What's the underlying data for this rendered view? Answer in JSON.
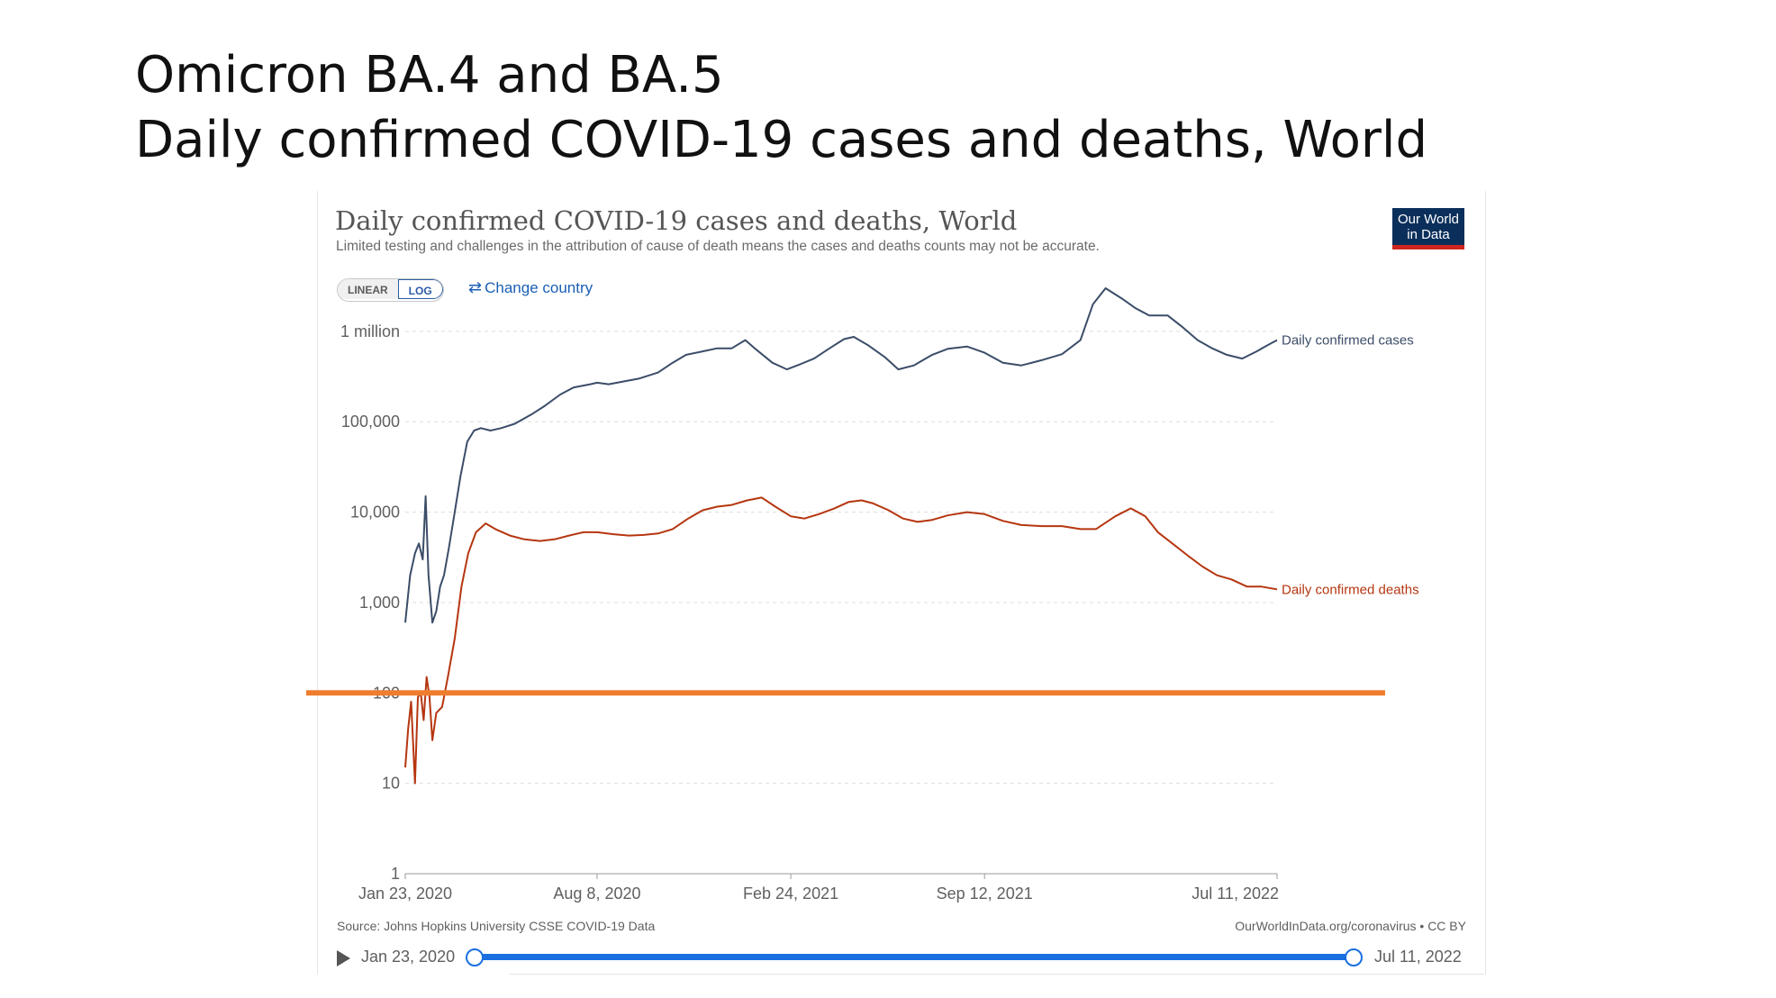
{
  "slide": {
    "title_line1": "Omicron BA.4 and BA.5",
    "title_line2": "Daily confirmed COVID-19 cases and deaths, World"
  },
  "chart_header": {
    "title": "Daily confirmed COVID-19 cases and deaths, World",
    "subtitle": "Limited testing and challenges in the attribution of cause of death means the cases and deaths counts may not be accurate.",
    "logo_line1": "Our World",
    "logo_line2": "in Data"
  },
  "controls": {
    "linear_label": "LINEAR",
    "log_label": "LOG",
    "change_country_label": "Change country",
    "change_country_icon": "swap-arrows-icon"
  },
  "footer": {
    "source": "Source: Johns Hopkins University CSSE COVID-19 Data",
    "license": "OurWorldInData.org/coronavirus • CC BY",
    "timeline_start": "Jan 23, 2020",
    "timeline_end": "Jul 11, 2022",
    "play_icon": "play-icon"
  },
  "colors": {
    "cases": "#3b4d68",
    "deaths": "#b5360f",
    "highlight": "#ef7d2e",
    "grid": "#dddddd",
    "axis_text": "#5f5f5f",
    "slider": "#1a6fe0"
  },
  "chart_data": {
    "type": "line",
    "title": "Daily confirmed COVID-19 cases and deaths, World",
    "y_scale": "log",
    "ylim": [
      1,
      3000000
    ],
    "y_ticks": [
      {
        "value": 1,
        "label": "1"
      },
      {
        "value": 10,
        "label": "10"
      },
      {
        "value": 100,
        "label": "100"
      },
      {
        "value": 1000,
        "label": "1,000"
      },
      {
        "value": 10000,
        "label": "10,000"
      },
      {
        "value": 100000,
        "label": "100,000"
      },
      {
        "value": 1000000,
        "label": "1 million"
      }
    ],
    "x_ticks": [
      {
        "date": "2020-01-23",
        "label": "Jan 23, 2020"
      },
      {
        "date": "2020-08-08",
        "label": "Aug 8, 2020"
      },
      {
        "date": "2021-02-24",
        "label": "Feb 24, 2021"
      },
      {
        "date": "2021-09-12",
        "label": "Sep 12, 2021"
      },
      {
        "date": "2022-07-11",
        "label": "Jul 11, 2022"
      }
    ],
    "xlim": [
      "2020-01-23",
      "2022-07-11"
    ],
    "grid": true,
    "reference_line": {
      "value": 100,
      "color": "#ef7d2e"
    },
    "series": [
      {
        "name": "Daily confirmed cases",
        "color": "#3b4d68",
        "points": [
          [
            "2020-01-23",
            600
          ],
          [
            "2020-01-28",
            2000
          ],
          [
            "2020-02-02",
            3500
          ],
          [
            "2020-02-06",
            4500
          ],
          [
            "2020-02-10",
            3000
          ],
          [
            "2020-02-13",
            15000
          ],
          [
            "2020-02-16",
            2000
          ],
          [
            "2020-02-20",
            600
          ],
          [
            "2020-02-24",
            800
          ],
          [
            "2020-02-28",
            1500
          ],
          [
            "2020-03-03",
            2000
          ],
          [
            "2020-03-08",
            4000
          ],
          [
            "2020-03-14",
            10000
          ],
          [
            "2020-03-20",
            25000
          ],
          [
            "2020-03-27",
            60000
          ],
          [
            "2020-04-03",
            80000
          ],
          [
            "2020-04-10",
            85000
          ],
          [
            "2020-04-20",
            80000
          ],
          [
            "2020-05-01",
            85000
          ],
          [
            "2020-05-15",
            95000
          ],
          [
            "2020-06-01",
            120000
          ],
          [
            "2020-06-15",
            150000
          ],
          [
            "2020-07-01",
            200000
          ],
          [
            "2020-07-15",
            240000
          ],
          [
            "2020-08-01",
            260000
          ],
          [
            "2020-08-08",
            270000
          ],
          [
            "2020-08-20",
            260000
          ],
          [
            "2020-09-05",
            280000
          ],
          [
            "2020-09-20",
            300000
          ],
          [
            "2020-10-10",
            350000
          ],
          [
            "2020-10-25",
            450000
          ],
          [
            "2020-11-08",
            550000
          ],
          [
            "2020-11-25",
            600000
          ],
          [
            "2020-12-10",
            650000
          ],
          [
            "2020-12-25",
            650000
          ],
          [
            "2021-01-08",
            800000
          ],
          [
            "2021-01-20",
            620000
          ],
          [
            "2021-02-05",
            450000
          ],
          [
            "2021-02-20",
            380000
          ],
          [
            "2021-03-05",
            430000
          ],
          [
            "2021-03-20",
            500000
          ],
          [
            "2021-04-05",
            650000
          ],
          [
            "2021-04-20",
            820000
          ],
          [
            "2021-04-30",
            870000
          ],
          [
            "2021-05-15",
            700000
          ],
          [
            "2021-06-01",
            520000
          ],
          [
            "2021-06-15",
            380000
          ],
          [
            "2021-07-01",
            420000
          ],
          [
            "2021-07-20",
            550000
          ],
          [
            "2021-08-05",
            640000
          ],
          [
            "2021-08-25",
            680000
          ],
          [
            "2021-09-12",
            580000
          ],
          [
            "2021-10-01",
            450000
          ],
          [
            "2021-10-20",
            420000
          ],
          [
            "2021-11-10",
            480000
          ],
          [
            "2021-12-01",
            560000
          ],
          [
            "2021-12-20",
            800000
          ],
          [
            "2022-01-02",
            2000000
          ],
          [
            "2022-01-15",
            3000000
          ],
          [
            "2022-02-01",
            2300000
          ],
          [
            "2022-02-15",
            1800000
          ],
          [
            "2022-03-01",
            1500000
          ],
          [
            "2022-03-20",
            1500000
          ],
          [
            "2022-04-05",
            1100000
          ],
          [
            "2022-04-20",
            800000
          ],
          [
            "2022-05-05",
            650000
          ],
          [
            "2022-05-20",
            550000
          ],
          [
            "2022-06-05",
            500000
          ],
          [
            "2022-06-20",
            600000
          ],
          [
            "2022-07-01",
            700000
          ],
          [
            "2022-07-11",
            800000
          ]
        ]
      },
      {
        "name": "Daily confirmed deaths",
        "color": "#b5360f",
        "points": [
          [
            "2020-01-23",
            15
          ],
          [
            "2020-01-26",
            40
          ],
          [
            "2020-01-29",
            80
          ],
          [
            "2020-02-02",
            10
          ],
          [
            "2020-02-05",
            90
          ],
          [
            "2020-02-08",
            100
          ],
          [
            "2020-02-11",
            50
          ],
          [
            "2020-02-14",
            150
          ],
          [
            "2020-02-17",
            90
          ],
          [
            "2020-02-20",
            30
          ],
          [
            "2020-02-24",
            60
          ],
          [
            "2020-03-01",
            70
          ],
          [
            "2020-03-07",
            150
          ],
          [
            "2020-03-14",
            400
          ],
          [
            "2020-03-21",
            1500
          ],
          [
            "2020-03-28",
            3500
          ],
          [
            "2020-04-05",
            6000
          ],
          [
            "2020-04-15",
            7500
          ],
          [
            "2020-04-25",
            6500
          ],
          [
            "2020-05-10",
            5500
          ],
          [
            "2020-05-25",
            5000
          ],
          [
            "2020-06-10",
            4800
          ],
          [
            "2020-06-25",
            5000
          ],
          [
            "2020-07-10",
            5500
          ],
          [
            "2020-07-25",
            6000
          ],
          [
            "2020-08-08",
            6000
          ],
          [
            "2020-08-25",
            5700
          ],
          [
            "2020-09-10",
            5500
          ],
          [
            "2020-09-25",
            5600
          ],
          [
            "2020-10-10",
            5800
          ],
          [
            "2020-10-25",
            6500
          ],
          [
            "2020-11-10",
            8500
          ],
          [
            "2020-11-25",
            10500
          ],
          [
            "2020-12-10",
            11500
          ],
          [
            "2020-12-25",
            12000
          ],
          [
            "2021-01-10",
            13500
          ],
          [
            "2021-01-25",
            14500
          ],
          [
            "2021-02-08",
            11500
          ],
          [
            "2021-02-24",
            9000
          ],
          [
            "2021-03-10",
            8500
          ],
          [
            "2021-03-25",
            9500
          ],
          [
            "2021-04-10",
            11000
          ],
          [
            "2021-04-25",
            13000
          ],
          [
            "2021-05-08",
            13500
          ],
          [
            "2021-05-20",
            12500
          ],
          [
            "2021-06-05",
            10500
          ],
          [
            "2021-06-20",
            8500
          ],
          [
            "2021-07-05",
            7800
          ],
          [
            "2021-07-20",
            8200
          ],
          [
            "2021-08-05",
            9200
          ],
          [
            "2021-08-25",
            10000
          ],
          [
            "2021-09-12",
            9500
          ],
          [
            "2021-10-01",
            8000
          ],
          [
            "2021-10-20",
            7200
          ],
          [
            "2021-11-10",
            7000
          ],
          [
            "2021-12-01",
            7000
          ],
          [
            "2021-12-20",
            6500
          ],
          [
            "2022-01-05",
            6500
          ],
          [
            "2022-01-25",
            9000
          ],
          [
            "2022-02-10",
            11000
          ],
          [
            "2022-02-25",
            9000
          ],
          [
            "2022-03-10",
            6000
          ],
          [
            "2022-03-25",
            4500
          ],
          [
            "2022-04-10",
            3300
          ],
          [
            "2022-04-25",
            2500
          ],
          [
            "2022-05-10",
            2000
          ],
          [
            "2022-05-25",
            1800
          ],
          [
            "2022-06-10",
            1500
          ],
          [
            "2022-06-25",
            1500
          ],
          [
            "2022-07-11",
            1400
          ]
        ]
      }
    ]
  }
}
